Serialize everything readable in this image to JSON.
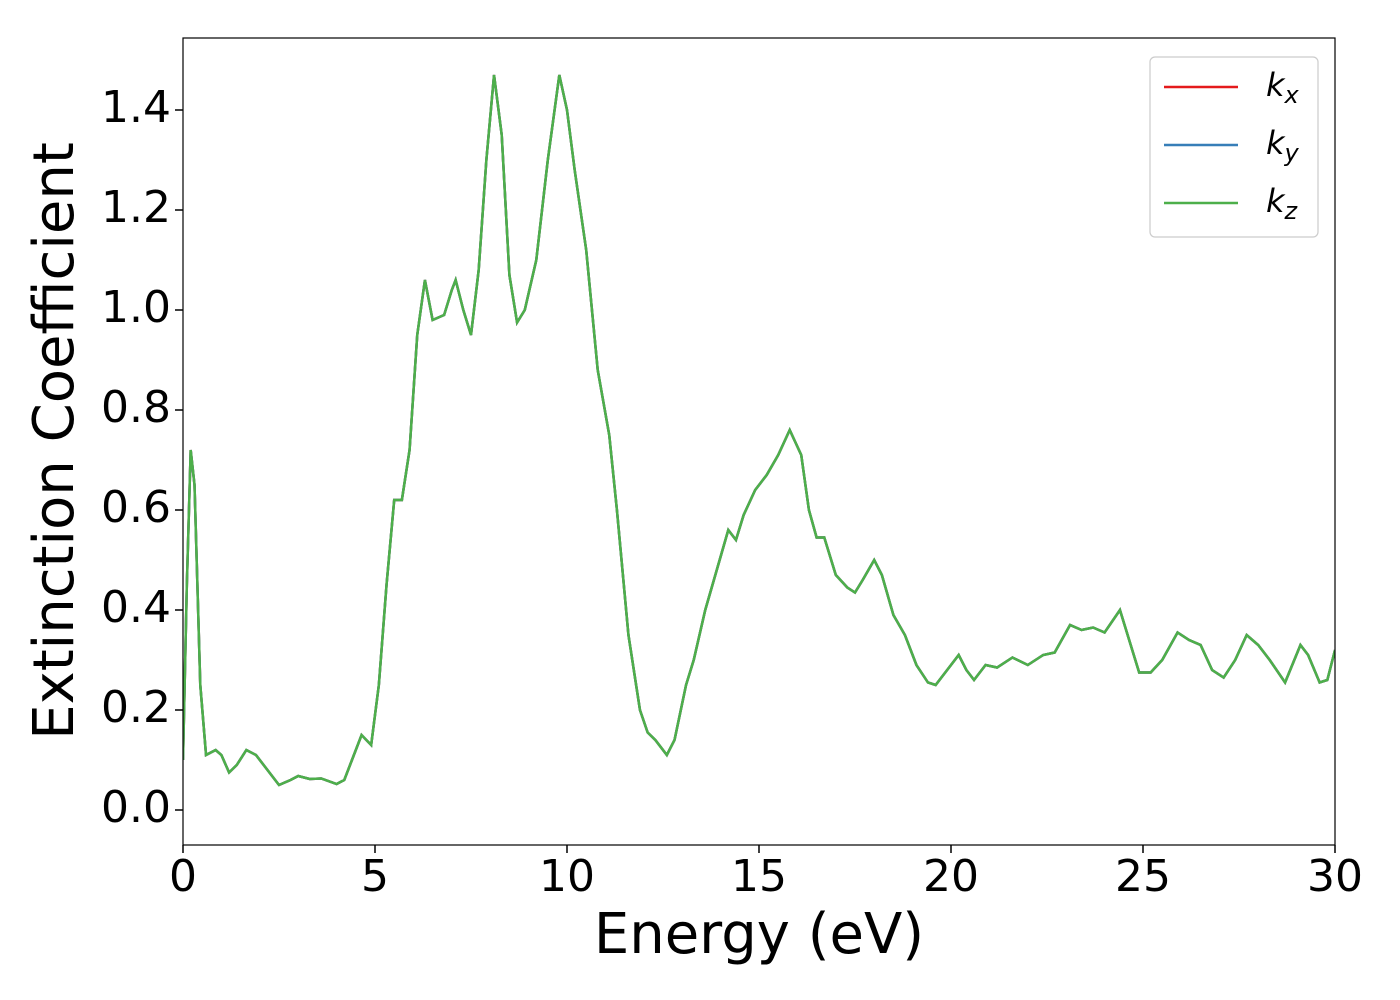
{
  "chart_data": {
    "type": "line",
    "xlabel": "Energy (eV)",
    "ylabel": "Extinction Coefficient",
    "xlim": [
      0,
      30
    ],
    "xticks": [
      0,
      5,
      10,
      15,
      20,
      25,
      30
    ],
    "ylim": [
      -0.07,
      1.544
    ],
    "yticks": [
      {
        "value": 0,
        "label": "0.0"
      },
      0.2,
      0.4,
      0.6,
      0.8,
      {
        "value": 1,
        "label": "1.0"
      },
      1.2,
      1.4
    ],
    "legend": "upper right",
    "x": [
      0,
      0.1,
      0.2,
      0.3,
      0.45,
      0.6,
      0.85,
      1.0,
      1.2,
      1.4,
      1.65,
      1.9,
      2.2,
      2.5,
      2.8,
      3.0,
      3.3,
      3.6,
      4.0,
      4.2,
      4.4,
      4.65,
      4.9,
      5.1,
      5.3,
      5.5,
      5.7,
      5.9,
      6.1,
      6.3,
      6.5,
      6.8,
      7.0,
      7.1,
      7.3,
      7.5,
      7.7,
      7.9,
      8.1,
      8.3,
      8.5,
      8.7,
      8.9,
      9.2,
      9.5,
      9.8,
      10.0,
      10.2,
      10.5,
      10.8,
      11.1,
      11.3,
      11.6,
      11.9,
      12.1,
      12.3,
      12.6,
      12.8,
      13.1,
      13.3,
      13.6,
      13.9,
      14.2,
      14.4,
      14.6,
      14.9,
      15.2,
      15.5,
      15.8,
      16.1,
      16.3,
      16.5,
      16.7,
      17.0,
      17.3,
      17.5,
      17.7,
      18.0,
      18.2,
      18.5,
      18.8,
      19.1,
      19.4,
      19.6,
      19.9,
      20.2,
      20.4,
      20.6,
      20.9,
      21.2,
      21.6,
      22.0,
      22.4,
      22.7,
      23.1,
      23.4,
      23.7,
      24.0,
      24.4,
      24.6,
      24.9,
      25.2,
      25.5,
      25.9,
      26.2,
      26.5,
      26.8,
      27.1,
      27.4,
      27.7,
      28.0,
      28.3,
      28.7,
      29.1,
      29.3,
      29.6,
      29.8,
      30.0
    ],
    "series": [
      {
        "name": "kx",
        "color": "#e41a1c",
        "values": [
          0.1,
          0.45,
          0.72,
          0.65,
          0.25,
          0.11,
          0.12,
          0.11,
          0.075,
          0.09,
          0.12,
          0.11,
          0.08,
          0.05,
          0.06,
          0.068,
          0.062,
          0.063,
          0.052,
          0.06,
          0.1,
          0.15,
          0.13,
          0.25,
          0.45,
          0.62,
          0.62,
          0.72,
          0.95,
          1.06,
          0.98,
          0.99,
          1.04,
          1.06,
          1.0,
          0.95,
          1.08,
          1.3,
          1.47,
          1.35,
          1.07,
          0.975,
          1.0,
          1.1,
          1.3,
          1.47,
          1.4,
          1.28,
          1.12,
          0.88,
          0.75,
          0.6,
          0.35,
          0.2,
          0.155,
          0.14,
          0.11,
          0.14,
          0.25,
          0.3,
          0.4,
          0.48,
          0.56,
          0.54,
          0.59,
          0.64,
          0.67,
          0.71,
          0.76,
          0.71,
          0.6,
          0.545,
          0.545,
          0.47,
          0.445,
          0.435,
          0.46,
          0.5,
          0.47,
          0.39,
          0.35,
          0.29,
          0.255,
          0.25,
          0.28,
          0.31,
          0.28,
          0.26,
          0.29,
          0.285,
          0.305,
          0.29,
          0.31,
          0.315,
          0.37,
          0.36,
          0.365,
          0.355,
          0.4,
          0.35,
          0.275,
          0.275,
          0.3,
          0.355,
          0.34,
          0.33,
          0.28,
          0.265,
          0.3,
          0.35,
          0.33,
          0.3,
          0.255,
          0.33,
          0.31,
          0.255,
          0.26,
          0.32
        ]
      },
      {
        "name": "ky",
        "color": "#377eb8",
        "values": [
          0.1,
          0.45,
          0.72,
          0.65,
          0.25,
          0.11,
          0.12,
          0.11,
          0.075,
          0.09,
          0.12,
          0.11,
          0.08,
          0.05,
          0.06,
          0.068,
          0.062,
          0.063,
          0.052,
          0.06,
          0.1,
          0.15,
          0.13,
          0.25,
          0.45,
          0.62,
          0.62,
          0.72,
          0.95,
          1.06,
          0.98,
          0.99,
          1.04,
          1.06,
          1.0,
          0.95,
          1.08,
          1.3,
          1.47,
          1.35,
          1.07,
          0.975,
          1.0,
          1.1,
          1.3,
          1.47,
          1.4,
          1.28,
          1.12,
          0.88,
          0.75,
          0.6,
          0.35,
          0.2,
          0.155,
          0.14,
          0.11,
          0.14,
          0.25,
          0.3,
          0.4,
          0.48,
          0.56,
          0.54,
          0.59,
          0.64,
          0.67,
          0.71,
          0.76,
          0.71,
          0.6,
          0.545,
          0.545,
          0.47,
          0.445,
          0.435,
          0.46,
          0.5,
          0.47,
          0.39,
          0.35,
          0.29,
          0.255,
          0.25,
          0.28,
          0.31,
          0.28,
          0.26,
          0.29,
          0.285,
          0.305,
          0.29,
          0.31,
          0.315,
          0.37,
          0.36,
          0.365,
          0.355,
          0.4,
          0.35,
          0.275,
          0.275,
          0.3,
          0.355,
          0.34,
          0.33,
          0.28,
          0.265,
          0.3,
          0.35,
          0.33,
          0.3,
          0.255,
          0.33,
          0.31,
          0.255,
          0.26,
          0.32
        ]
      },
      {
        "name": "kz",
        "color": "#4daf4a",
        "values": [
          0.1,
          0.45,
          0.72,
          0.65,
          0.25,
          0.11,
          0.12,
          0.11,
          0.075,
          0.09,
          0.12,
          0.11,
          0.08,
          0.05,
          0.06,
          0.068,
          0.062,
          0.063,
          0.052,
          0.06,
          0.1,
          0.15,
          0.13,
          0.25,
          0.45,
          0.62,
          0.62,
          0.72,
          0.95,
          1.06,
          0.98,
          0.99,
          1.04,
          1.06,
          1.0,
          0.95,
          1.08,
          1.3,
          1.47,
          1.35,
          1.07,
          0.975,
          1.0,
          1.1,
          1.3,
          1.47,
          1.4,
          1.28,
          1.12,
          0.88,
          0.75,
          0.6,
          0.35,
          0.2,
          0.155,
          0.14,
          0.11,
          0.14,
          0.25,
          0.3,
          0.4,
          0.48,
          0.56,
          0.54,
          0.59,
          0.64,
          0.67,
          0.71,
          0.76,
          0.71,
          0.6,
          0.545,
          0.545,
          0.47,
          0.445,
          0.435,
          0.46,
          0.5,
          0.47,
          0.39,
          0.35,
          0.29,
          0.255,
          0.25,
          0.28,
          0.31,
          0.28,
          0.26,
          0.29,
          0.285,
          0.305,
          0.29,
          0.31,
          0.315,
          0.37,
          0.36,
          0.365,
          0.355,
          0.4,
          0.35,
          0.275,
          0.275,
          0.3,
          0.355,
          0.34,
          0.33,
          0.28,
          0.265,
          0.3,
          0.35,
          0.33,
          0.3,
          0.255,
          0.33,
          0.31,
          0.255,
          0.26,
          0.32
        ]
      }
    ]
  }
}
